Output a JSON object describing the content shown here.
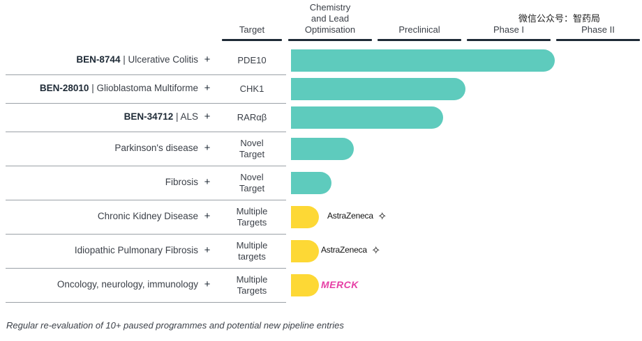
{
  "headers": {
    "target": "Target",
    "chem_l1": "Chemistry",
    "chem_l2": "and Lead",
    "chem_l3": "Optimisation",
    "preclinical": "Preclinical",
    "phase1": "Phase I",
    "phase2": "Phase II"
  },
  "watermark": "微信公众号：智药局",
  "footer": "Regular re-evaluation of 10+ paused programmes and potential new pipeline entries",
  "colors": {
    "wholly_owned": "#5ecbbd",
    "partnered": "#fdd835",
    "header_rule": "#1e2a36"
  },
  "chart_data": {
    "type": "bar",
    "orientation": "horizontal",
    "stages": [
      "Chemistry and Lead Optimisation",
      "Preclinical",
      "Phase I",
      "Phase II"
    ],
    "rows": [
      {
        "code": "BEN-8744",
        "indication": " | Ulcerative Colitis",
        "target_l1": "PDE10",
        "target_l2": "",
        "progress": 3.0,
        "partner": ""
      },
      {
        "code": "BEN-28010",
        "indication": " | Glioblastoma Multiforme",
        "target_l1": "CHK1",
        "target_l2": "",
        "progress": 2.0,
        "partner": ""
      },
      {
        "code": "BEN-34712",
        "indication": " | ALS",
        "target_l1": "RARαβ",
        "target_l2": "",
        "progress": 1.75,
        "partner": ""
      },
      {
        "code": "",
        "indication": "Parkinson's disease",
        "target_l1": "Novel",
        "target_l2": "Target",
        "progress": 0.75,
        "partner": ""
      },
      {
        "code": "",
        "indication": "Fibrosis",
        "target_l1": "Novel",
        "target_l2": "Target",
        "progress": 0.5,
        "partner": ""
      },
      {
        "code": "",
        "indication": "Chronic Kidney Disease",
        "target_l1": "Multiple",
        "target_l2": "Targets",
        "progress": 0.25,
        "partner": "AstraZeneca"
      },
      {
        "code": "",
        "indication": "Idiopathic Pulmonary Fibrosis",
        "target_l1": "Multiple",
        "target_l2": "targets",
        "progress": 0.25,
        "partner": "AstraZeneca"
      },
      {
        "code": "",
        "indication": "Oncology, neurology, immunology",
        "target_l1": "Multiple",
        "target_l2": "Targets",
        "progress": 0.25,
        "partner": "MERCK"
      }
    ],
    "plus_symbol": "+"
  }
}
